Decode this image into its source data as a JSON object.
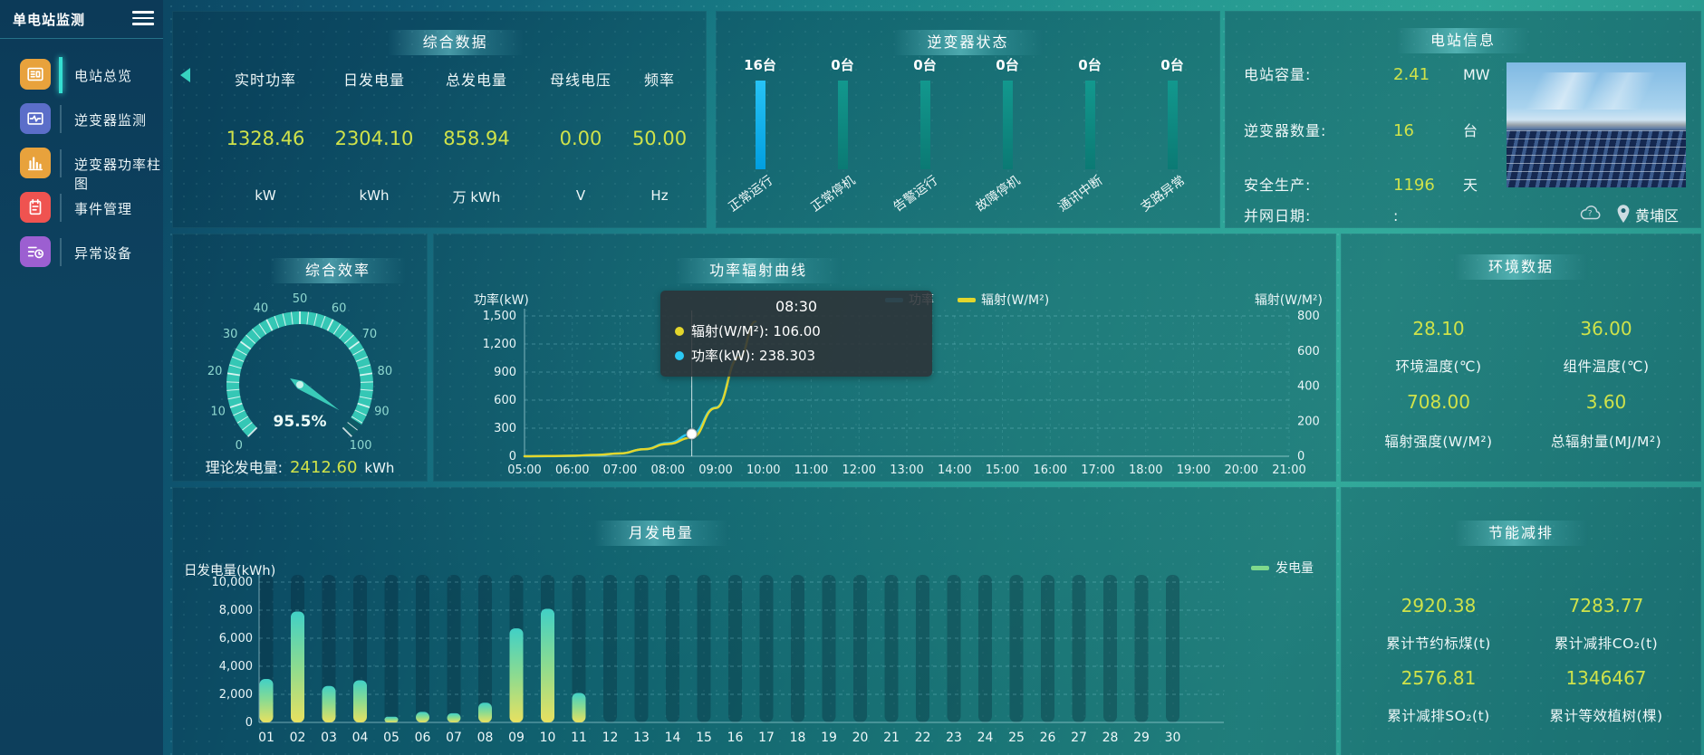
{
  "app": {
    "title": "单电站监测"
  },
  "sidebar": {
    "items": [
      {
        "label": "电站总览",
        "active": true
      },
      {
        "label": "逆变器监测",
        "active": false
      },
      {
        "label": "逆变器功率柱图",
        "active": false
      },
      {
        "label": "事件管理",
        "active": false
      },
      {
        "label": "异常设备",
        "active": false
      }
    ]
  },
  "summary": {
    "title": "综合数据",
    "metrics": [
      {
        "label": "实时功率",
        "value": "1328.46",
        "unit": "kW"
      },
      {
        "label": "日发电量",
        "value": "2304.10",
        "unit": "kWh"
      },
      {
        "label": "总发电量",
        "value": "858.94",
        "unit": "万 kWh"
      },
      {
        "label": "母线电压",
        "value": "0.00",
        "unit": "V"
      },
      {
        "label": "频率",
        "value": "50.00",
        "unit": "Hz"
      }
    ]
  },
  "inverter_status": {
    "title": "逆变器状态",
    "groups": [
      {
        "count": "16台",
        "label": "正常运行",
        "highlight": true
      },
      {
        "count": "0台",
        "label": "正常停机",
        "highlight": false
      },
      {
        "count": "0台",
        "label": "告警运行",
        "highlight": false
      },
      {
        "count": "0台",
        "label": "故障停机",
        "highlight": false
      },
      {
        "count": "0台",
        "label": "通讯中断",
        "highlight": false
      },
      {
        "count": "0台",
        "label": "支路异常",
        "highlight": false
      }
    ]
  },
  "station_info": {
    "title": "电站信息",
    "rows": [
      {
        "label": "电站容量:",
        "value": "2.41",
        "unit": "MW"
      },
      {
        "label": "逆变器数量:",
        "value": "16",
        "unit": "台"
      },
      {
        "label": "安全生产:",
        "value": "1196",
        "unit": "天"
      },
      {
        "label": "并网日期:",
        "value": ":",
        "unit": ""
      }
    ],
    "location": "黄埔区"
  },
  "efficiency": {
    "title": "综合效率",
    "value": "95.5%",
    "theory_label": "理论发电量:",
    "theory_value": "2412.60",
    "theory_unit": "kWh"
  },
  "power_curve": {
    "title": "功率辐射曲线",
    "y_left_name": "功率(kW)",
    "y_right_name": "辐射(W/M²)",
    "legend": [
      {
        "name": "功率",
        "color": "#2bc9f4"
      },
      {
        "name": "辐射(W/M²)",
        "color": "#e3d62c"
      }
    ],
    "tooltip": {
      "time": "08:30",
      "lines": [
        {
          "text": "辐射(W/M²): 106.00",
          "color": "#e3d62c"
        },
        {
          "text": "功率(kW): 238.303",
          "color": "#2bc9f4"
        }
      ]
    }
  },
  "environment": {
    "title": "环境数据",
    "metrics": [
      {
        "value": "28.10",
        "label": "环境温度(℃)"
      },
      {
        "value": "36.00",
        "label": "组件温度(℃)"
      },
      {
        "value": "708.00",
        "label": "辐射强度(W/M²)"
      },
      {
        "value": "3.60",
        "label": "总辐射量(MJ/M²)"
      }
    ]
  },
  "monthly": {
    "title": "月发电量",
    "y_name": "日发电量(kWh)",
    "legend": "发电量"
  },
  "saving": {
    "title": "节能减排",
    "metrics": [
      {
        "value": "2920.38",
        "label": "累计节约标煤(t)"
      },
      {
        "value": "7283.77",
        "label": "累计减排CO₂(t)"
      },
      {
        "value": "2576.81",
        "label": "累计减排SO₂(t)"
      },
      {
        "value": "1346467",
        "label": "累计等效植树(棵)"
      }
    ]
  },
  "colors": {
    "value_yellow": "#cfe24a",
    "power_line": "#2bc9f4",
    "radiation_line": "#e3d62c",
    "inverter_bar_active": "#17b8f0",
    "inverter_bar_normal": "#0f8e86",
    "gauge_arc": "#35c7b5",
    "monthly_legend": "#7fd98c",
    "title_text": "#ffffff"
  },
  "chart_data": [
    {
      "id": "inverter_status",
      "type": "bar",
      "title": "逆变器状态",
      "categories": [
        "正常运行",
        "正常停机",
        "告警运行",
        "故障停机",
        "通讯中断",
        "支路异常"
      ],
      "values": [
        16,
        0,
        0,
        0,
        0,
        0
      ],
      "unit": "台",
      "note": "bars rendered equal height; device counts labeled above bars; first category highlighted cyan"
    },
    {
      "id": "efficiency_gauge",
      "type": "gauge",
      "title": "综合效率",
      "min": 0,
      "max": 100,
      "value": 95.5,
      "label": "95.5%",
      "unit": "%",
      "ticks": [
        0,
        10,
        20,
        30,
        40,
        50,
        60,
        70,
        80,
        90,
        100
      ]
    },
    {
      "id": "power_radiation",
      "type": "line",
      "title": "功率辐射曲线",
      "x": [
        "05:00",
        "05:30",
        "06:00",
        "06:30",
        "07:00",
        "07:30",
        "08:00",
        "08:30",
        "09:00",
        "09:30",
        "09:50"
      ],
      "series": [
        {
          "name": "功率",
          "unit": "kW",
          "axis": "left",
          "color": "#2bc9f4",
          "values": [
            0,
            1,
            4,
            12,
            30,
            75,
            140,
            238.3,
            520,
            1080,
            1430
          ]
        },
        {
          "name": "辐射",
          "unit": "W/M²",
          "axis": "right",
          "color": "#e3d62c",
          "values": [
            0,
            1,
            3,
            8,
            16,
            40,
            70,
            106,
            275,
            565,
            768
          ]
        }
      ],
      "x_axis_labels": [
        "05:00",
        "06:00",
        "07:00",
        "08:00",
        "09:00",
        "10:00",
        "11:00",
        "12:00",
        "13:00",
        "14:00",
        "15:00",
        "16:00",
        "17:00",
        "18:00",
        "19:00",
        "20:00",
        "21:00"
      ],
      "ylim_left": [
        0,
        1500
      ],
      "ylim_right": [
        0,
        800
      ],
      "y_ticks_left": [
        0,
        300,
        600,
        900,
        1200,
        1500
      ],
      "y_ticks_right": [
        0,
        200,
        400,
        600,
        800
      ],
      "grid": true,
      "legend_position": "top-right",
      "highlight": {
        "x": "08:30",
        "radiation": 106.0,
        "power": 238.303
      }
    },
    {
      "id": "monthly_energy",
      "type": "bar",
      "title": "月发电量",
      "ylabel": "日发电量(kWh)",
      "categories": [
        "01",
        "02",
        "03",
        "04",
        "05",
        "06",
        "07",
        "08",
        "09",
        "10",
        "11",
        "12",
        "13",
        "14",
        "15",
        "16",
        "17",
        "18",
        "19",
        "20",
        "21",
        "22",
        "23",
        "24",
        "25",
        "26",
        "27",
        "28",
        "29",
        "30"
      ],
      "values": [
        3100,
        7900,
        2600,
        3000,
        400,
        750,
        650,
        1400,
        6700,
        8100,
        2100,
        0,
        0,
        0,
        0,
        0,
        0,
        0,
        0,
        0,
        0,
        0,
        0,
        0,
        0,
        0,
        0,
        0,
        0,
        0
      ],
      "ylim": [
        0,
        10000
      ],
      "y_ticks": [
        0,
        2000,
        4000,
        6000,
        8000,
        10000
      ],
      "grid": true
    }
  ]
}
